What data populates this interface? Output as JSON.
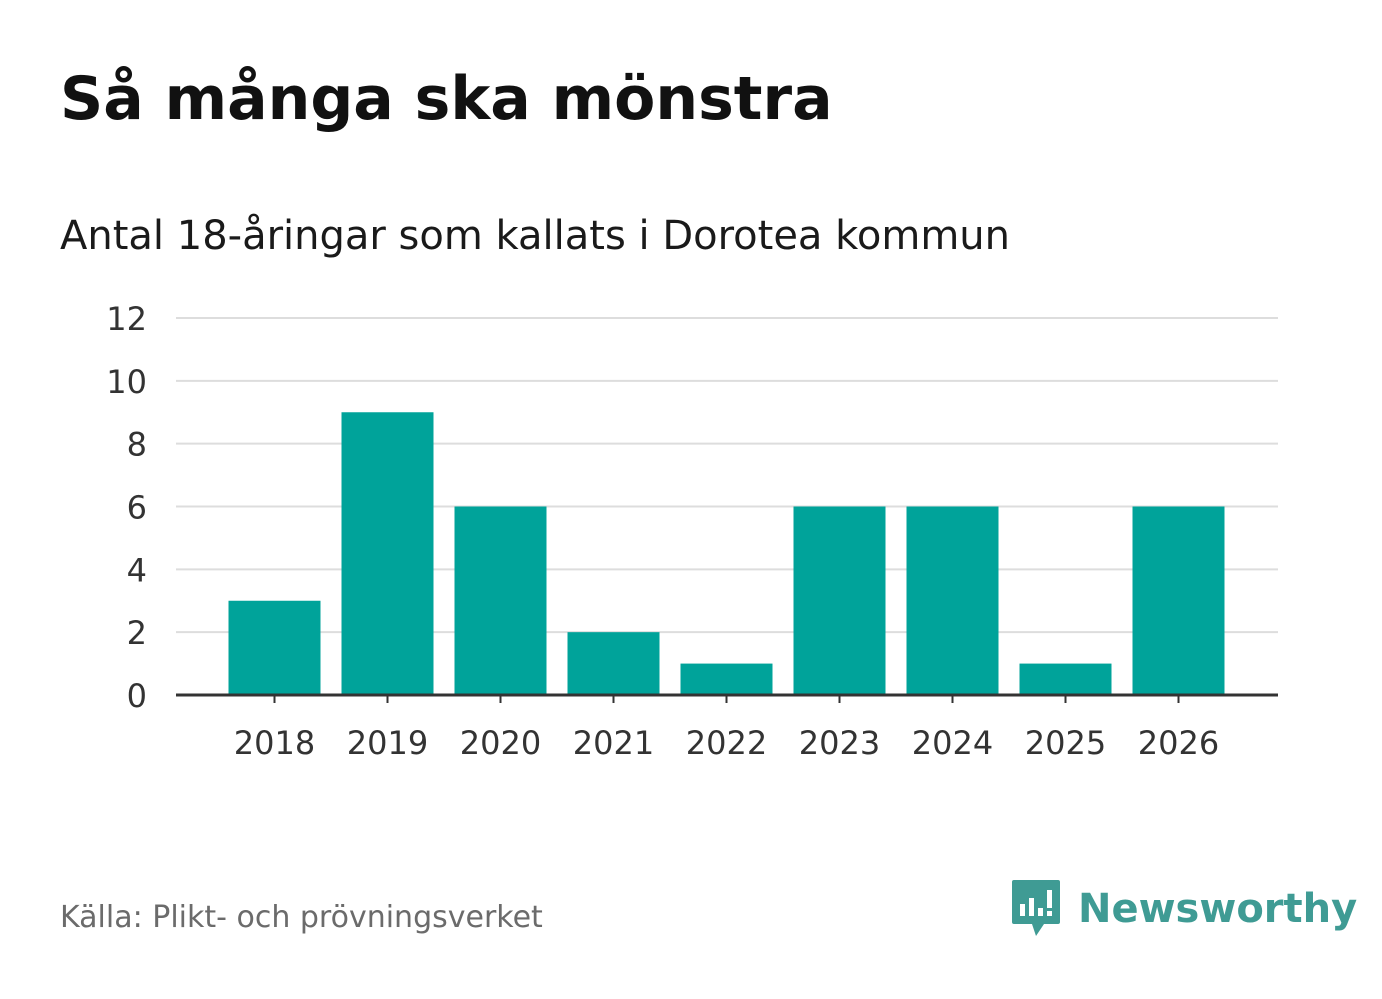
{
  "chart_data": {
    "type": "bar",
    "title": "Så många ska mönstra",
    "subtitle": "Antal 18-åringar som kallats i Dorotea kommun",
    "categories": [
      "2018",
      "2019",
      "2020",
      "2021",
      "2022",
      "2023",
      "2024",
      "2025",
      "2026"
    ],
    "values": [
      3,
      9,
      6,
      2,
      1,
      6,
      6,
      1,
      6
    ],
    "ylim": [
      0,
      12
    ],
    "yticks": [
      "0",
      "2",
      "4",
      "6",
      "8",
      "10",
      "12"
    ],
    "grid": true,
    "bar_color": "#00a39a",
    "source": "Källa: Plikt- och prövningsverket"
  },
  "logo": {
    "icon": "newsworthy-chart-bubble-icon",
    "text": "Newsworthy",
    "color": "#3f9b94"
  }
}
